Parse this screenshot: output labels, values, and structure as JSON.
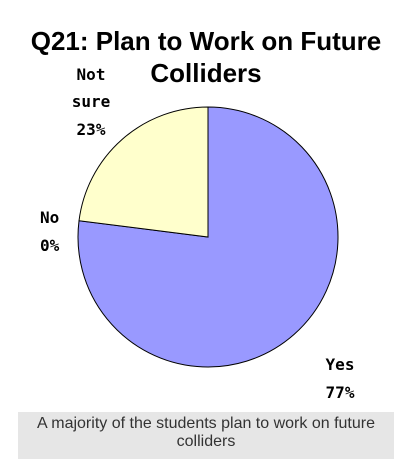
{
  "chart_data": {
    "type": "pie",
    "title": "Q21: Plan to Work on Future Colliders",
    "title_lines": [
      "Q21: Plan to Work on Future",
      "Colliders"
    ],
    "slices": [
      {
        "label": "Yes",
        "value": 77,
        "value_label": "77%",
        "color": "#9999ff"
      },
      {
        "label": "Not sure",
        "value": 23,
        "value_label": "23%",
        "color": "#ffffcc"
      },
      {
        "label": "No",
        "value": 0,
        "value_label": "0%",
        "color": "#993366"
      }
    ],
    "slice_outline_color": "#000000"
  },
  "caption": "A majority of the students plan to work on future colliders"
}
